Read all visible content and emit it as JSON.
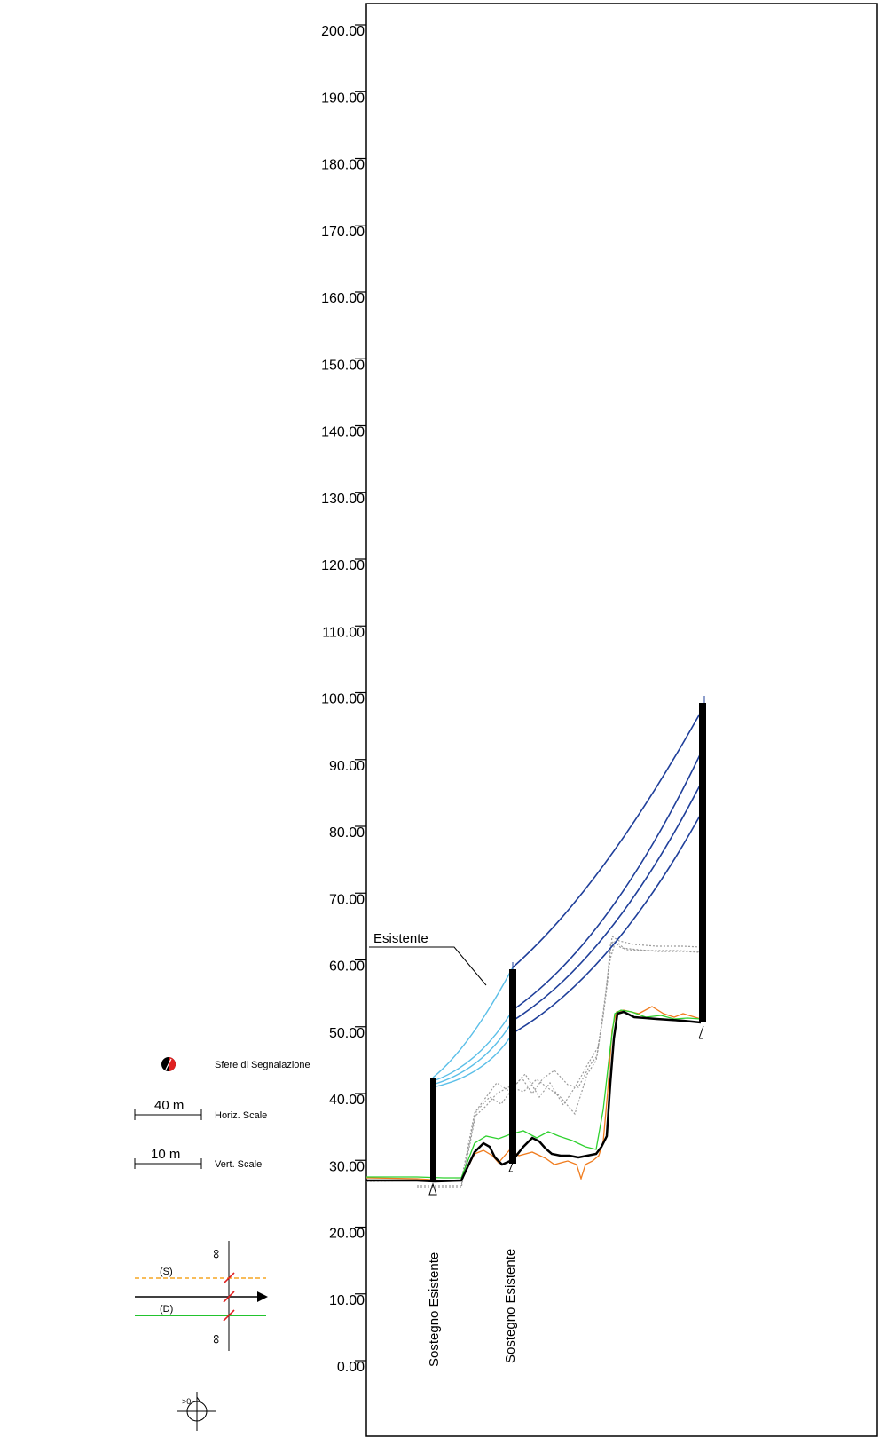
{
  "y_axis": {
    "min": 0,
    "max": 200,
    "step": 10,
    "tick_labels": [
      "0.00",
      "10.00",
      "20.00",
      "30.00",
      "40.00",
      "50.00",
      "60.00",
      "70.00",
      "80.00",
      "90.00",
      "100.00",
      "110.00",
      "120.00",
      "130.00",
      "140.00",
      "150.00",
      "160.00",
      "170.00",
      "180.00",
      "190.00",
      "200.00"
    ]
  },
  "line_label": "Esistente",
  "towers": [
    {
      "label": "Sostegno Esistente",
      "base_elev": 28.5,
      "top_elev": 43.5
    },
    {
      "label": "Sostegno Esistente",
      "base_elev": 31.5,
      "top_elev": 59.5
    },
    {
      "label": "",
      "base_elev": 51.5,
      "top_elev": 99.5
    }
  ],
  "legend": {
    "marker_label": "Sfere di Segnalazione",
    "horiz_scale": {
      "value": "40 m",
      "label": "Horiz. Scale"
    },
    "vert_scale": {
      "value": "10 m",
      "label": "Vert. Scale"
    },
    "section": {
      "left_label": "(S)",
      "right_label": "(D)",
      "left_infinity": "∞",
      "right_infinity": "∞",
      "left_color": "#f5a623",
      "right_color": "#22c32e"
    },
    "north_symbol": ">0"
  },
  "colors": {
    "conductors_dark": "#1f3f9a",
    "conductors_light": "#5bbfe8",
    "ground_profile": "#000000",
    "offset_left": "#f07c1e",
    "offset_right": "#2fd12f",
    "clearance": "#9a9a9a"
  }
}
